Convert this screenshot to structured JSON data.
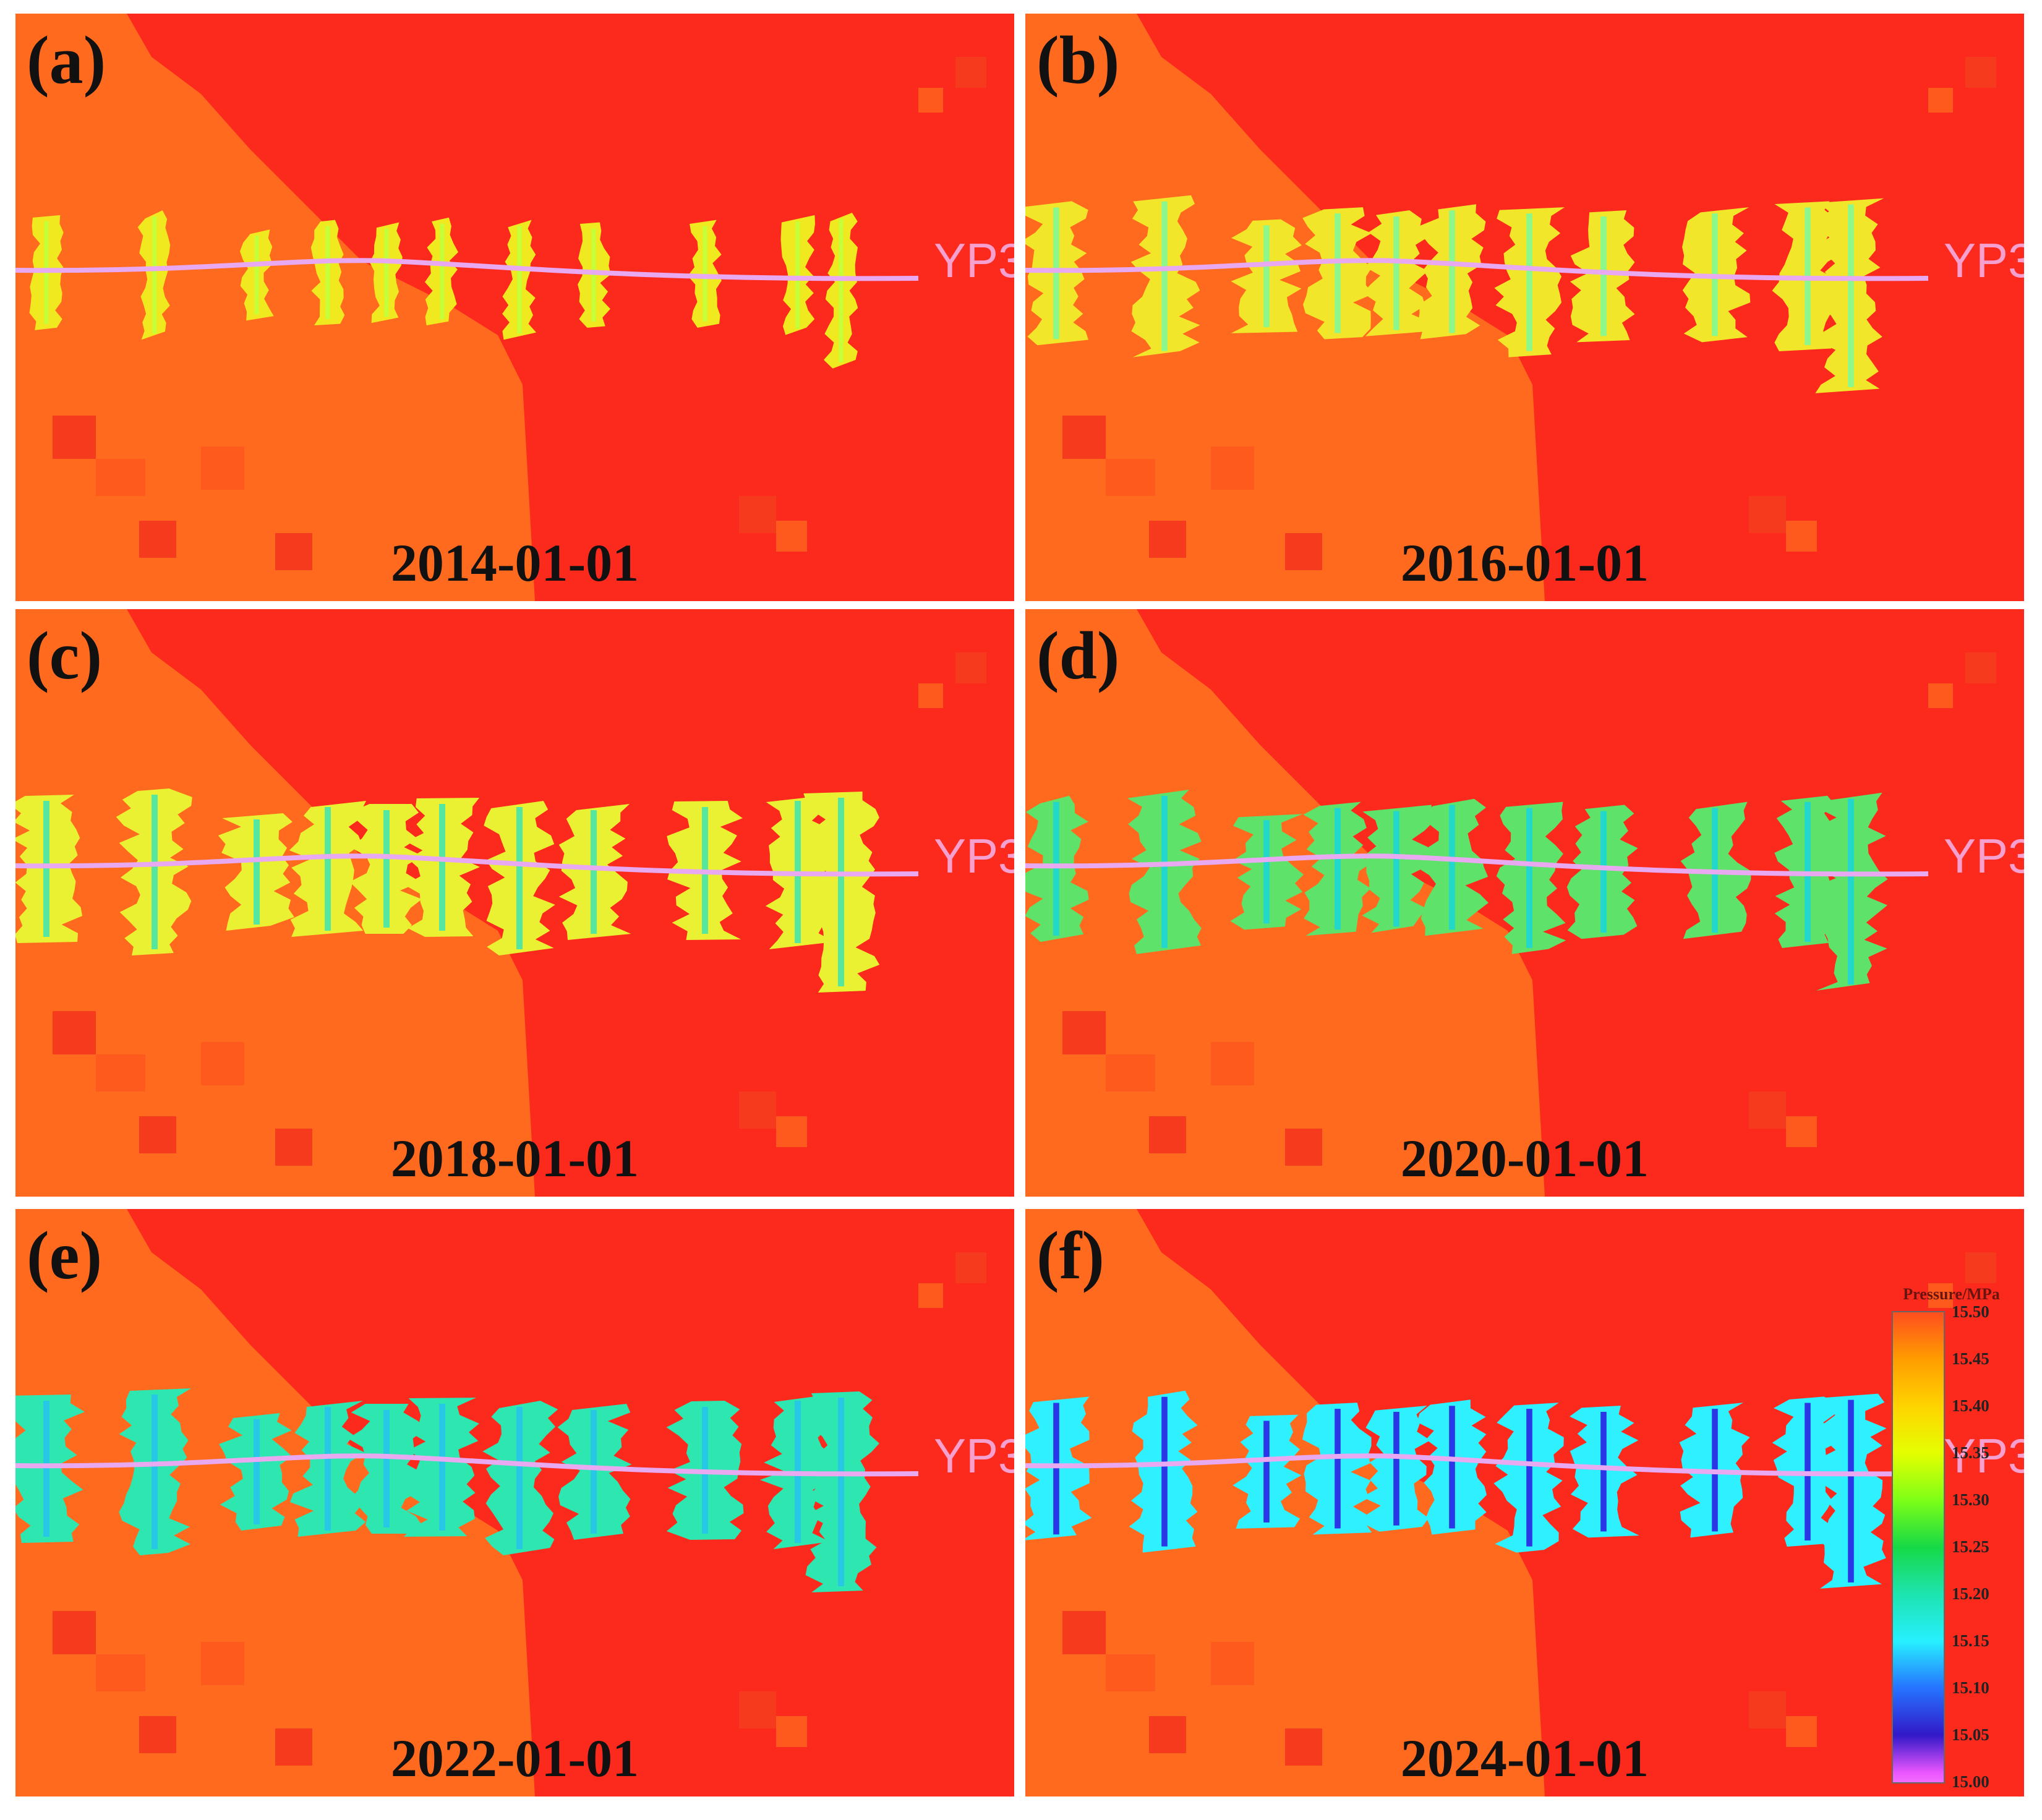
{
  "well_name": "YP3",
  "panels": [
    {
      "label": "(a)",
      "date": "2014-01-01",
      "fracture_color": "#f0e91f",
      "inner_color": "#c4ff3a"
    },
    {
      "label": "(b)",
      "date": "2016-01-01",
      "fracture_color": "#f2e62a",
      "inner_color": "#8cf78a"
    },
    {
      "label": "(c)",
      "date": "2018-01-01",
      "fracture_color": "#eaf132",
      "inner_color": "#55e6a0"
    },
    {
      "label": "(d)",
      "date": "2020-01-01",
      "fracture_color": "#5fe26a",
      "inner_color": "#22d8cc"
    },
    {
      "label": "(e)",
      "date": "2022-01-01",
      "fracture_color": "#2ee7b0",
      "inner_color": "#26c8e6"
    },
    {
      "label": "(f)",
      "date": "2024-01-01",
      "fracture_color": "#2ff0ff",
      "inner_color": "#2b36e6"
    }
  ],
  "legend": {
    "title": "Pressure/MPa",
    "ticks": [
      "15.50",
      "15.45",
      "15.40",
      "15.35",
      "15.30",
      "15.25",
      "15.20",
      "15.15",
      "15.10",
      "15.05",
      "15.00"
    ]
  },
  "colors": {
    "background_high_pressure": "#fb2a1d",
    "background_lower_pressure": "#ff6a1e",
    "wellbore": "#e8a9f0"
  }
}
